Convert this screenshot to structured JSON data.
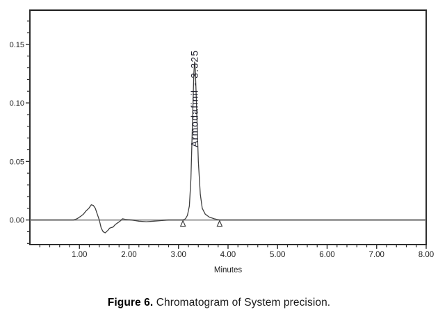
{
  "figure": {
    "caption_bold": "Figure 6.",
    "caption_rest": " Chromatogram of System precision."
  },
  "chart_data": {
    "type": "line",
    "title": "",
    "xlabel": "Minutes",
    "ylabel": "",
    "xlim": [
      0,
      8
    ],
    "ylim": [
      -0.021,
      0.179
    ],
    "x_major_ticks": [
      1,
      2,
      3,
      4,
      5,
      6,
      7,
      8
    ],
    "x_major_labels": [
      "1.00",
      "2.00",
      "3.00",
      "4.00",
      "5.00",
      "6.00",
      "7.00",
      "8.00"
    ],
    "x_minor_step": 0.2,
    "y_major_ticks": [
      0.0,
      0.05,
      0.1,
      0.15
    ],
    "y_major_labels": [
      "0.00",
      "0.05",
      "0.10",
      "0.15"
    ],
    "y_minor_step": 0.01,
    "grid": "off",
    "legend": "none",
    "baseline_value": 0.0,
    "peak": {
      "label": "Armodafinil - 3.325",
      "compound": "Armodafinil",
      "retention_time_min": 3.325,
      "apex_height_au": 0.135,
      "integration_start_min": 3.09,
      "integration_end_min": 3.83
    },
    "series": [
      {
        "name": "chromatogram-trace",
        "points": [
          [
            0,
            0
          ],
          [
            0.4,
            0
          ],
          [
            0.7,
            0
          ],
          [
            0.88,
            0
          ],
          [
            0.95,
            0.001
          ],
          [
            1.02,
            0.003
          ],
          [
            1.08,
            0.005
          ],
          [
            1.14,
            0.008
          ],
          [
            1.19,
            0.01
          ],
          [
            1.24,
            0.013
          ],
          [
            1.28,
            0.0125
          ],
          [
            1.32,
            0.01
          ],
          [
            1.36,
            0.005
          ],
          [
            1.4,
            0.0
          ],
          [
            1.44,
            -0.007
          ],
          [
            1.48,
            -0.01
          ],
          [
            1.52,
            -0.011
          ],
          [
            1.57,
            -0.009
          ],
          [
            1.61,
            -0.007
          ],
          [
            1.64,
            -0.0065
          ],
          [
            1.68,
            -0.006
          ],
          [
            1.72,
            -0.004
          ],
          [
            1.77,
            -0.0025
          ],
          [
            1.82,
            -0.001
          ],
          [
            1.87,
            0.001
          ],
          [
            1.93,
            0.0005
          ],
          [
            2.05,
            0
          ],
          [
            2.2,
            -0.001
          ],
          [
            2.35,
            -0.0015
          ],
          [
            2.5,
            -0.001
          ],
          [
            2.65,
            -0.0005
          ],
          [
            2.8,
            0
          ],
          [
            3.0,
            0
          ],
          [
            3.09,
            0
          ],
          [
            3.14,
            0.001
          ],
          [
            3.18,
            0.004
          ],
          [
            3.22,
            0.012
          ],
          [
            3.25,
            0.035
          ],
          [
            3.28,
            0.08
          ],
          [
            3.31,
            0.125
          ],
          [
            3.325,
            0.135
          ],
          [
            3.34,
            0.128
          ],
          [
            3.37,
            0.09
          ],
          [
            3.4,
            0.05
          ],
          [
            3.44,
            0.022
          ],
          [
            3.48,
            0.01
          ],
          [
            3.54,
            0.005
          ],
          [
            3.62,
            0.0025
          ],
          [
            3.72,
            0.001
          ],
          [
            3.83,
            0
          ],
          [
            4.0,
            0
          ],
          [
            4.5,
            0
          ],
          [
            5.0,
            0
          ],
          [
            5.5,
            0
          ],
          [
            6.0,
            0
          ],
          [
            6.5,
            0
          ],
          [
            7.0,
            0
          ],
          [
            7.5,
            0
          ],
          [
            8.0,
            0
          ]
        ]
      }
    ],
    "colors": {
      "trace": "#3f3f3f",
      "baseline_line": "#9c9c9c",
      "plot_border": "#2e2e2e",
      "tick_text": "#1c1c1c",
      "peak_label_text": "#1d1d2b",
      "background": "#ffffff"
    }
  }
}
